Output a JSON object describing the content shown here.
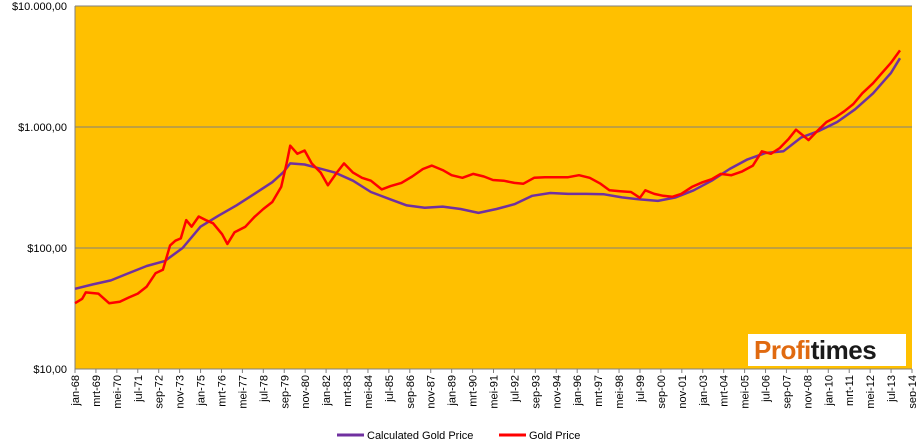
{
  "chart_data": {
    "type": "line",
    "title": "",
    "xlabel": "",
    "ylabel": "",
    "y_scale": "log",
    "ylim": [
      10,
      10000
    ],
    "y_ticks": [
      "$10,00",
      "$100,00",
      "$1.000,00",
      "$10.000,00"
    ],
    "x_ticks": [
      "jan-68",
      "mrt-69",
      "mei-70",
      "jul-71",
      "sep-72",
      "nov-73",
      "jan-75",
      "mrt-76",
      "mei-77",
      "jul-78",
      "sep-79",
      "nov-80",
      "jan-82",
      "mrt-83",
      "mei-84",
      "jul-85",
      "sep-86",
      "nov-87",
      "jan-89",
      "mrt-90",
      "mei-91",
      "jul-92",
      "sep-93",
      "nov-94",
      "jan-96",
      "mrt-97",
      "mei-98",
      "jul-99",
      "sep-00",
      "nov-01",
      "jan-03",
      "mrt-04",
      "mei-05",
      "jul-06",
      "sep-07",
      "nov-08",
      "jan-10",
      "mrt-11",
      "mei-12",
      "jul-13",
      "sep-14"
    ],
    "x_range": [
      1968.0,
      2014.67
    ],
    "grid": true,
    "legend_position": "bottom",
    "plot_background": "#ffc000",
    "series": [
      {
        "name": "Calculated Gold Price",
        "color": "#7030a0",
        "points": [
          [
            1968.0,
            46
          ],
          [
            1969.0,
            50
          ],
          [
            1970.0,
            54
          ],
          [
            1971.0,
            62
          ],
          [
            1972.0,
            71
          ],
          [
            1973.0,
            78
          ],
          [
            1974.0,
            100
          ],
          [
            1975.0,
            150
          ],
          [
            1976.0,
            185
          ],
          [
            1977.0,
            225
          ],
          [
            1978.0,
            280
          ],
          [
            1979.0,
            350
          ],
          [
            1979.6,
            420
          ],
          [
            1980.0,
            500
          ],
          [
            1980.8,
            490
          ],
          [
            1981.5,
            460
          ],
          [
            1982.5,
            420
          ],
          [
            1983.5,
            360
          ],
          [
            1984.5,
            290
          ],
          [
            1985.5,
            255
          ],
          [
            1986.5,
            225
          ],
          [
            1987.5,
            215
          ],
          [
            1988.5,
            220
          ],
          [
            1989.5,
            210
          ],
          [
            1990.5,
            195
          ],
          [
            1991.5,
            210
          ],
          [
            1992.5,
            230
          ],
          [
            1993.5,
            270
          ],
          [
            1994.5,
            285
          ],
          [
            1995.5,
            280
          ],
          [
            1996.5,
            280
          ],
          [
            1997.5,
            278
          ],
          [
            1998.5,
            262
          ],
          [
            1999.5,
            252
          ],
          [
            2000.5,
            245
          ],
          [
            2001.5,
            262
          ],
          [
            2002.5,
            300
          ],
          [
            2003.5,
            360
          ],
          [
            2004.5,
            450
          ],
          [
            2005.5,
            540
          ],
          [
            2006.5,
            610
          ],
          [
            2007.5,
            630
          ],
          [
            2008.5,
            820
          ],
          [
            2009.5,
            930
          ],
          [
            2010.5,
            1100
          ],
          [
            2011.5,
            1400
          ],
          [
            2012.5,
            1900
          ],
          [
            2013.5,
            2800
          ],
          [
            2014.0,
            3700
          ]
        ]
      },
      {
        "name": "Gold Price",
        "color": "#ff0000",
        "points": [
          [
            1968.0,
            35
          ],
          [
            1968.4,
            38
          ],
          [
            1968.6,
            43
          ],
          [
            1969.3,
            42
          ],
          [
            1969.9,
            35
          ],
          [
            1970.5,
            36
          ],
          [
            1971.0,
            39
          ],
          [
            1971.5,
            42
          ],
          [
            1972.0,
            48
          ],
          [
            1972.5,
            62
          ],
          [
            1972.9,
            66
          ],
          [
            1973.3,
            105
          ],
          [
            1973.6,
            115
          ],
          [
            1973.9,
            120
          ],
          [
            1974.2,
            170
          ],
          [
            1974.5,
            150
          ],
          [
            1974.9,
            182
          ],
          [
            1975.3,
            170
          ],
          [
            1975.7,
            160
          ],
          [
            1976.2,
            130
          ],
          [
            1976.5,
            108
          ],
          [
            1976.9,
            135
          ],
          [
            1977.5,
            150
          ],
          [
            1978.0,
            180
          ],
          [
            1978.5,
            210
          ],
          [
            1979.0,
            240
          ],
          [
            1979.5,
            320
          ],
          [
            1979.8,
            500
          ],
          [
            1980.0,
            700
          ],
          [
            1980.4,
            600
          ],
          [
            1980.8,
            640
          ],
          [
            1981.2,
            500
          ],
          [
            1981.7,
            420
          ],
          [
            1982.1,
            330
          ],
          [
            1982.6,
            420
          ],
          [
            1983.0,
            500
          ],
          [
            1983.5,
            420
          ],
          [
            1984.0,
            380
          ],
          [
            1984.5,
            360
          ],
          [
            1985.1,
            305
          ],
          [
            1985.6,
            325
          ],
          [
            1986.2,
            345
          ],
          [
            1986.8,
            390
          ],
          [
            1987.4,
            450
          ],
          [
            1987.9,
            480
          ],
          [
            1988.5,
            440
          ],
          [
            1989.0,
            400
          ],
          [
            1989.6,
            380
          ],
          [
            1990.2,
            410
          ],
          [
            1990.8,
            390
          ],
          [
            1991.3,
            365
          ],
          [
            1991.9,
            360
          ],
          [
            1992.5,
            345
          ],
          [
            1993.0,
            340
          ],
          [
            1993.6,
            380
          ],
          [
            1994.2,
            385
          ],
          [
            1994.8,
            385
          ],
          [
            1995.5,
            385
          ],
          [
            1996.1,
            400
          ],
          [
            1996.7,
            380
          ],
          [
            1997.3,
            340
          ],
          [
            1997.8,
            300
          ],
          [
            1998.4,
            295
          ],
          [
            1999.0,
            290
          ],
          [
            1999.5,
            260
          ],
          [
            1999.8,
            300
          ],
          [
            2000.3,
            280
          ],
          [
            2000.8,
            270
          ],
          [
            2001.3,
            265
          ],
          [
            2001.8,
            280
          ],
          [
            2002.4,
            320
          ],
          [
            2003.0,
            350
          ],
          [
            2003.5,
            370
          ],
          [
            2004.0,
            410
          ],
          [
            2004.6,
            400
          ],
          [
            2005.2,
            430
          ],
          [
            2005.8,
            480
          ],
          [
            2006.3,
            630
          ],
          [
            2006.8,
            600
          ],
          [
            2007.3,
            670
          ],
          [
            2007.8,
            800
          ],
          [
            2008.2,
            950
          ],
          [
            2008.6,
            850
          ],
          [
            2008.9,
            780
          ],
          [
            2009.4,
            930
          ],
          [
            2009.9,
            1100
          ],
          [
            2010.4,
            1200
          ],
          [
            2010.9,
            1350
          ],
          [
            2011.4,
            1550
          ],
          [
            2011.9,
            1900
          ],
          [
            2012.5,
            2300
          ],
          [
            2013.0,
            2800
          ],
          [
            2013.5,
            3400
          ],
          [
            2014.0,
            4300
          ]
        ]
      }
    ]
  },
  "logo": {
    "part_a": "Profi",
    "part_b": "times"
  }
}
